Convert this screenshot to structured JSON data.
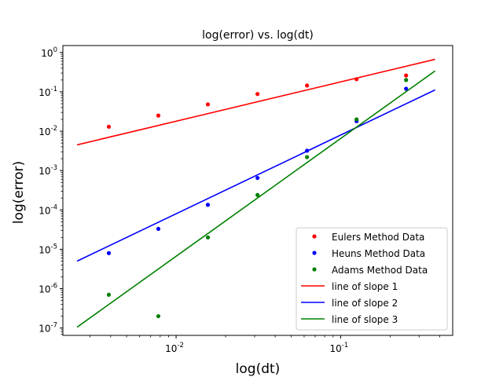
{
  "chart_data": {
    "type": "scatter",
    "title": "log(error) vs. log(dt)",
    "xlabel": "log(dt)",
    "ylabel": "log(error)",
    "x_scale": "log",
    "y_scale": "log",
    "xlim": [
      0.00205,
      0.48
    ],
    "ylim": [
      6.5e-08,
      1.5
    ],
    "grid": false,
    "legend_position": "bottom-right",
    "x_tick_values": [
      0.01,
      0.1
    ],
    "x_tick_labels": [
      "10^-2",
      "10^-1"
    ],
    "y_tick_values": [
      1e-07,
      1e-06,
      1e-05,
      0.0001,
      0.001,
      0.01,
      0.1,
      1
    ],
    "y_tick_labels": [
      "10^-7",
      "10^-6",
      "10^-5",
      "10^-4",
      "10^-3",
      "10^-2",
      "10^-1",
      "10^0"
    ],
    "series": [
      {
        "name": "Eulers Method Data",
        "kind": "points",
        "color": "#ff0000",
        "x": [
          0.0039,
          0.0078,
          0.0156,
          0.03125,
          0.0625,
          0.125,
          0.25
        ],
        "y": [
          0.013,
          0.025,
          0.048,
          0.088,
          0.145,
          0.21,
          0.26
        ]
      },
      {
        "name": "Heuns Method Data",
        "kind": "points",
        "color": "#0000ff",
        "x": [
          0.0039,
          0.0078,
          0.0156,
          0.03125,
          0.0625,
          0.125,
          0.25
        ],
        "y": [
          8e-06,
          3.3e-05,
          0.000135,
          0.00065,
          0.0032,
          0.018,
          0.12
        ]
      },
      {
        "name": "Adams Method Data",
        "kind": "points",
        "color": "#008000",
        "x": [
          0.0039,
          0.0078,
          0.0156,
          0.03125,
          0.0625,
          0.125,
          0.25
        ],
        "y": [
          7e-07,
          2e-07,
          2e-05,
          0.00024,
          0.0022,
          0.02,
          0.2
        ]
      },
      {
        "name": "line of slope 1",
        "kind": "line",
        "color": "#ff0000",
        "x": [
          0.0025,
          0.375
        ],
        "y": [
          0.0045,
          0.67
        ]
      },
      {
        "name": "line of slope 2",
        "kind": "line",
        "color": "#0000ff",
        "x": [
          0.0025,
          0.375
        ],
        "y": [
          5e-06,
          0.112
        ]
      },
      {
        "name": "line of slope 3",
        "kind": "line",
        "color": "#008000",
        "x": [
          0.0025,
          0.375
        ],
        "y": [
          1.05e-07,
          0.34
        ]
      }
    ]
  }
}
